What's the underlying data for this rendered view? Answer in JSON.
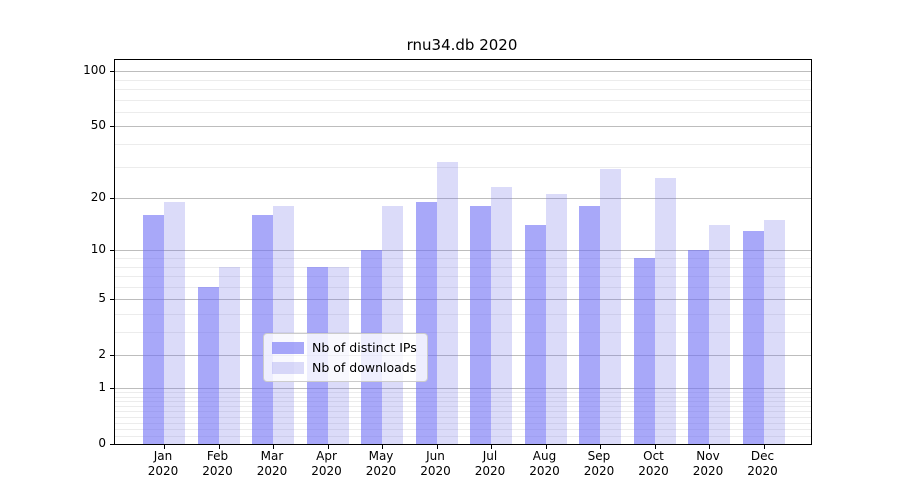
{
  "title": "rnu34.db 2020",
  "colors": {
    "bar_ips": "rgba(110,110,245,0.6)",
    "bar_downloads": "rgba(110,110,230,0.25)",
    "grid_major": "#bdbdbd",
    "grid_minor": "#ececec",
    "frame": "#000000"
  },
  "chart_data": {
    "type": "bar",
    "title": "rnu34.db 2020",
    "months": [
      "Jan",
      "Feb",
      "Mar",
      "Apr",
      "May",
      "Jun",
      "Jul",
      "Aug",
      "Sep",
      "Oct",
      "Nov",
      "Dec"
    ],
    "year": "2020",
    "categories": [
      "Jan 2020",
      "Feb 2020",
      "Mar 2020",
      "Apr 2020",
      "May 2020",
      "Jun 2020",
      "Jul 2020",
      "Aug 2020",
      "Sep 2020",
      "Oct 2020",
      "Nov 2020",
      "Dec 2020"
    ],
    "series": [
      {
        "name": "Nb of distinct IPs",
        "values": [
          16,
          6,
          16,
          8,
          10,
          19,
          18,
          14,
          18,
          9,
          10,
          13
        ]
      },
      {
        "name": "Nb of downloads",
        "values": [
          19,
          8,
          18,
          8,
          18,
          32,
          23,
          21,
          29,
          26,
          14,
          15
        ]
      }
    ],
    "yscale": "log1p",
    "ylim": [
      0,
      115
    ],
    "y_major_ticks": [
      100,
      50,
      20,
      10,
      5,
      2,
      1,
      0
    ],
    "y_minor_ticks": [
      0.1,
      0.2,
      0.3,
      0.4,
      0.5,
      0.6,
      0.7,
      0.8,
      0.9,
      3,
      4,
      6,
      7,
      8,
      9,
      30,
      40,
      60,
      70,
      80,
      90
    ],
    "grid": true,
    "legend_position": "lower center",
    "xlabel": "",
    "ylabel": ""
  }
}
